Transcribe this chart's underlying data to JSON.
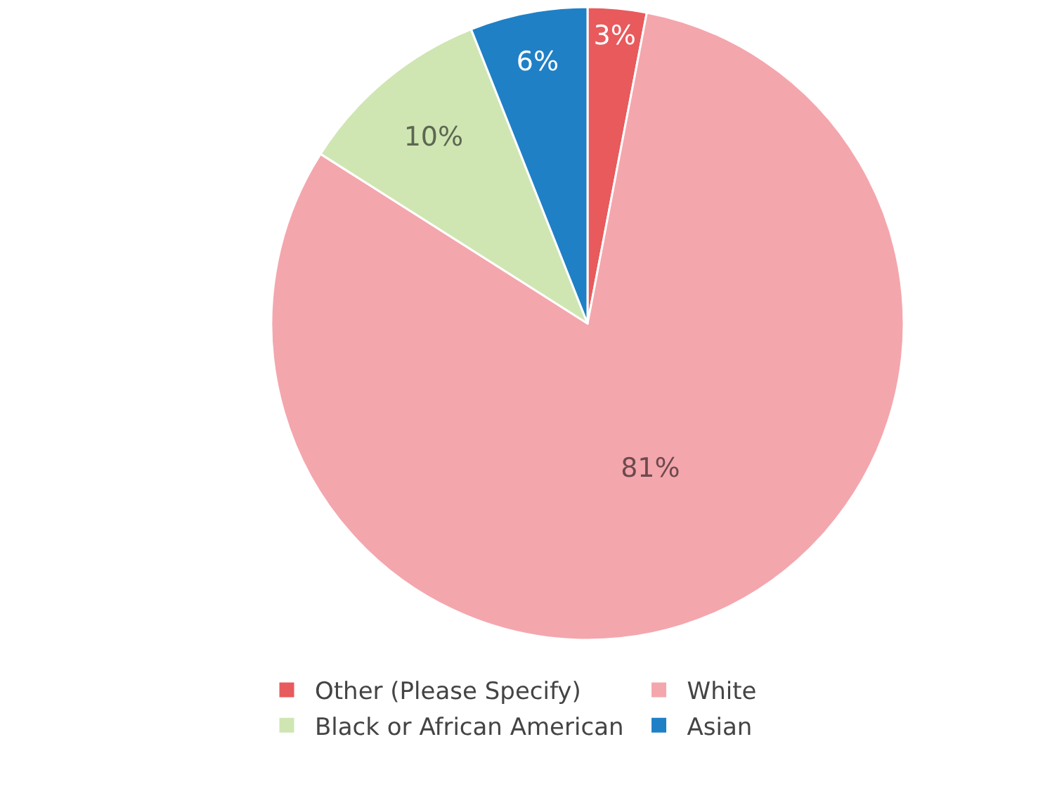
{
  "chart_data": {
    "type": "pie",
    "categories": [
      "Other (Please Specify)",
      "White",
      "Black or African American",
      "Asian"
    ],
    "values": [
      3,
      81,
      10,
      6
    ],
    "value_labels": [
      "3%",
      "81%",
      "10%",
      "6%"
    ],
    "colors": [
      "#e85a5c",
      "#f4a6ad",
      "#cfe6b3",
      "#1f80c6"
    ],
    "legend": "bottom"
  }
}
